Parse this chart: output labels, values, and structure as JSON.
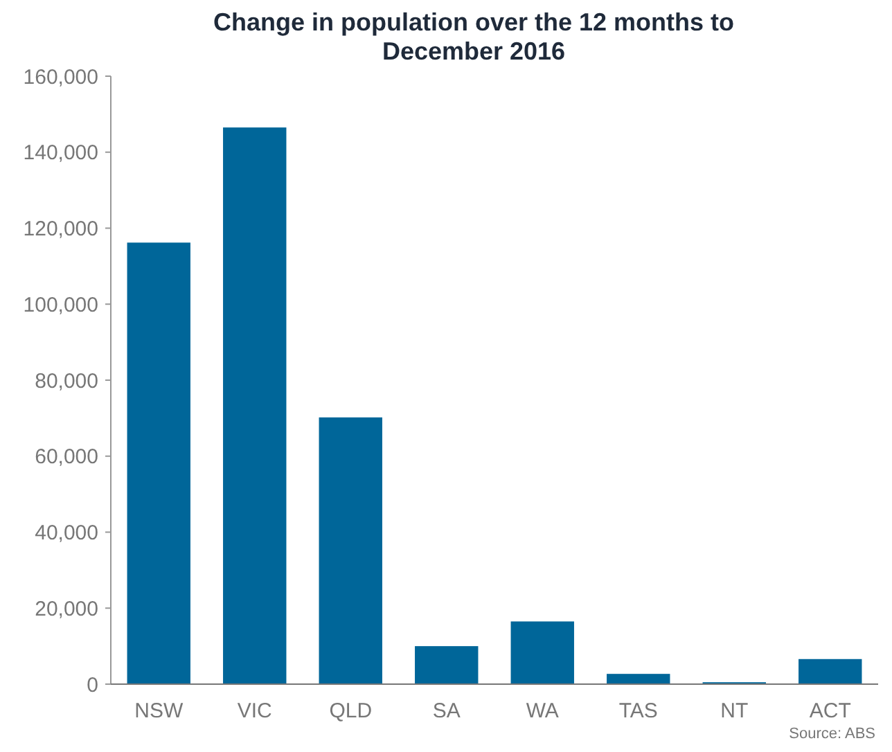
{
  "chart_data": {
    "type": "bar",
    "title": "Change in population over the 12 months to December 2016",
    "categories": [
      "NSW",
      "VIC",
      "QLD",
      "SA",
      "WA",
      "TAS",
      "NT",
      "ACT"
    ],
    "values": [
      116200,
      146500,
      70200,
      10000,
      16500,
      2700,
      500,
      6600
    ],
    "color": "#006699",
    "ylim": [
      0,
      160000
    ],
    "yticks": [
      {
        "value": 0,
        "label": "0"
      },
      {
        "value": 20000,
        "label": "20,000"
      },
      {
        "value": 40000,
        "label": "40,000"
      },
      {
        "value": 60000,
        "label": "60,000"
      },
      {
        "value": 80000,
        "label": "80,000"
      },
      {
        "value": 100000,
        "label": "100,000"
      },
      {
        "value": 120000,
        "label": "120,000"
      },
      {
        "value": 140000,
        "label": "140,000"
      },
      {
        "value": 160000,
        "label": "160,000"
      }
    ],
    "annotations": [
      "Source: ABS"
    ]
  }
}
